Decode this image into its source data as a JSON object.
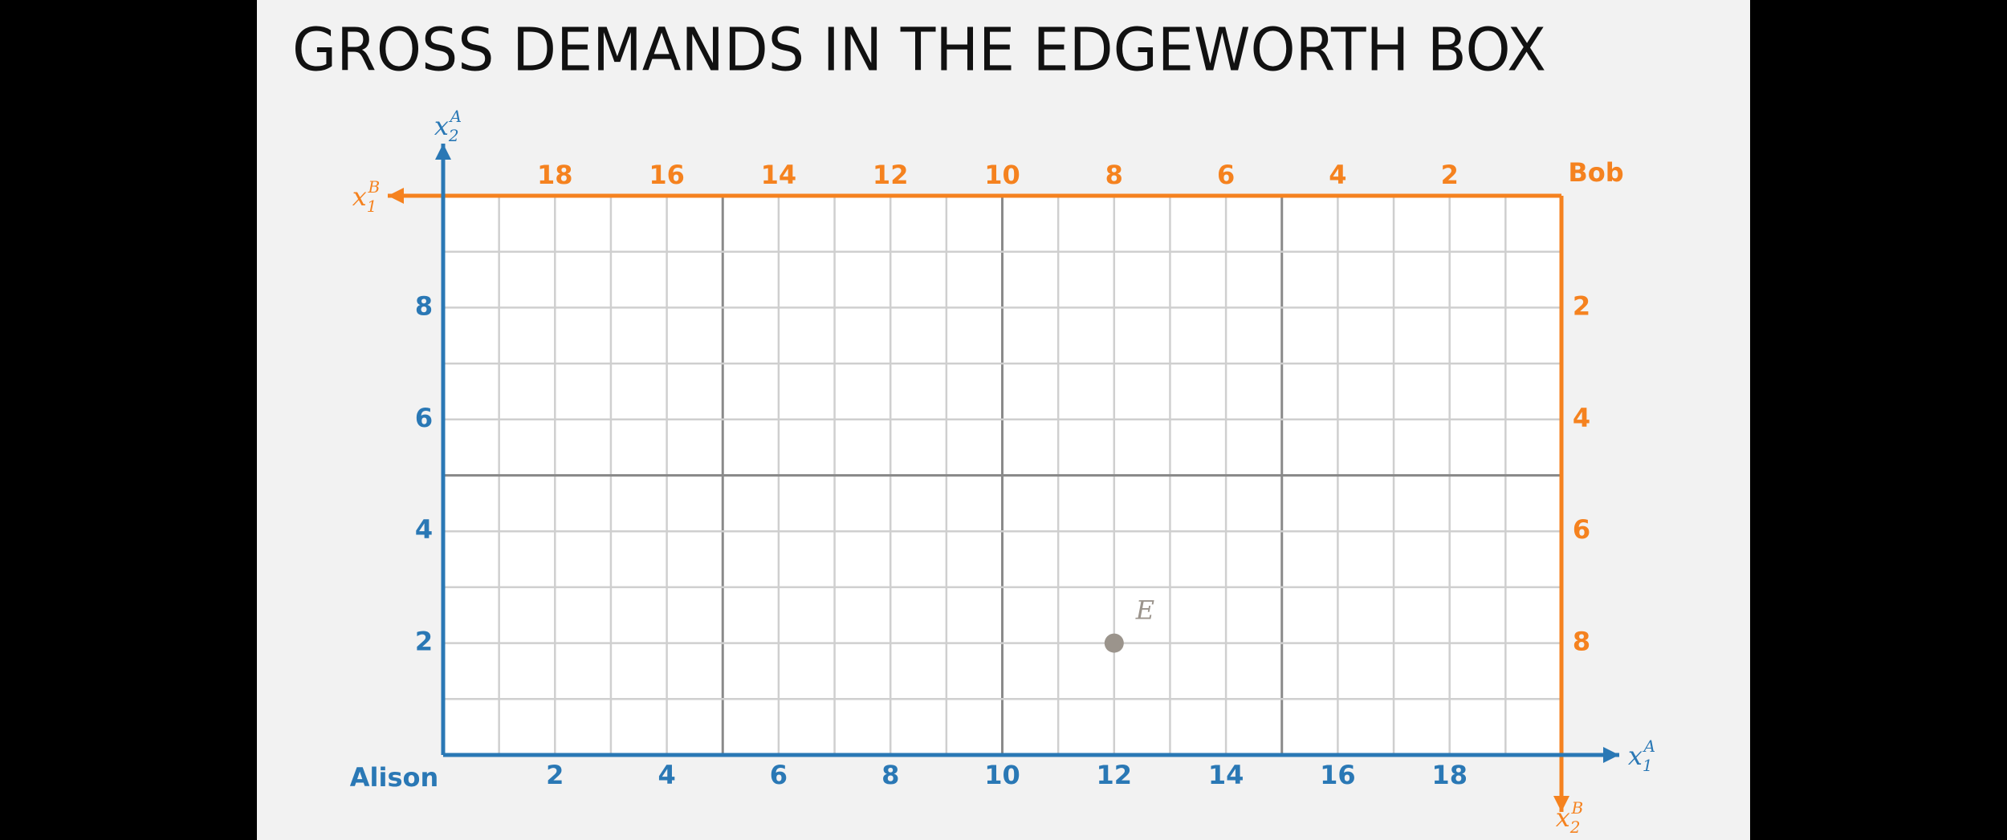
{
  "chart_data": {
    "type": "scatter",
    "title": "GROSS DEMANDS IN THE EDGEWORTH BOX",
    "origin_a_label": "Alison",
    "origin_b_label": "Bob",
    "x_label": {
      "symbol": "x",
      "subscript": "1",
      "superscript": "A"
    },
    "y_label": {
      "symbol": "x",
      "subscript": "2",
      "superscript": "A"
    },
    "x2_label": {
      "symbol": "x",
      "subscript": "1",
      "superscript": "B"
    },
    "y2_label": {
      "symbol": "x",
      "subscript": "2",
      "superscript": "B"
    },
    "xlim": [
      0,
      20
    ],
    "xticks": [
      2,
      4,
      6,
      8,
      10,
      12,
      14,
      16,
      18
    ],
    "ylim": [
      0,
      10
    ],
    "yticks": [
      2,
      4,
      6,
      8
    ],
    "x2lim": [
      20,
      0
    ],
    "x2ticks": [
      18,
      16,
      14,
      12,
      10,
      8,
      6,
      4,
      2
    ],
    "y2lim": [
      10,
      0
    ],
    "y2ticks": [
      2,
      4,
      6,
      8
    ],
    "xgrid": [
      1,
      2,
      3,
      4,
      5,
      6,
      7,
      8,
      9,
      10,
      11,
      12,
      13,
      14,
      15,
      16,
      17,
      18,
      19
    ],
    "ygrid": [
      1,
      2,
      3,
      4,
      5,
      6,
      7,
      8,
      9
    ],
    "xgrid_major": [
      5,
      10,
      15
    ],
    "ygrid_major": [
      5
    ],
    "alison_color": "#2a78b5",
    "bob_color": "#f5821f",
    "series": [
      {
        "name": "E",
        "color": "#9b948c",
        "x": [
          12
        ],
        "values": [
          2
        ]
      }
    ]
  }
}
